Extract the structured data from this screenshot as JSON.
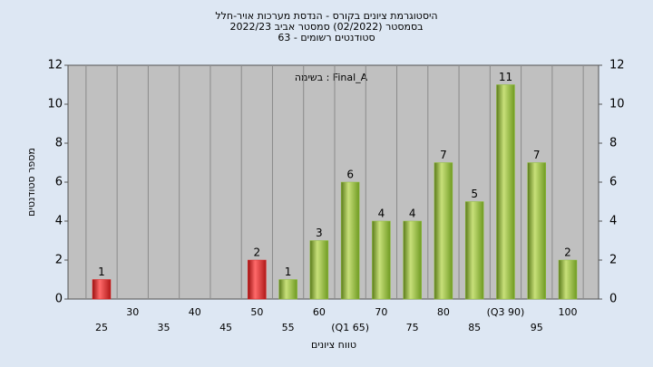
{
  "chart_data": {
    "type": "bar",
    "title_lines": [
      "היסטוגרמת ציונים בקורס - הנדסת מערכות אויר-חלל",
      "בסמסטר  (02/2022)  סמסטר אביב 2022/23",
      "סטודנטים רשומים - 63"
    ],
    "annotation": "בשימה : Final_A",
    "x_label": "טווח ציונים",
    "y_label": "מספר סטודנטים",
    "categories": [
      "25",
      "30",
      "35",
      "40",
      "45",
      "50",
      "55",
      "60",
      "(Q1 65)",
      "70",
      "75",
      "80",
      "85",
      "(Q3 90)",
      "95",
      "100"
    ],
    "values": [
      1,
      0,
      0,
      0,
      0,
      2,
      1,
      3,
      6,
      4,
      4,
      7,
      5,
      11,
      7,
      2
    ],
    "colors": [
      "#e02020",
      "#e02020",
      "#e02020",
      "#e02020",
      "#e02020",
      "#e02020",
      "#8fbf3a",
      "#8fbf3a",
      "#8fbf3a",
      "#8fbf3a",
      "#8fbf3a",
      "#8fbf3a",
      "#8fbf3a",
      "#8fbf3a",
      "#8fbf3a",
      "#8fbf3a"
    ],
    "ylim": [
      0,
      12
    ],
    "yticks": [
      0,
      2,
      4,
      6,
      8,
      10,
      12
    ],
    "y2lim": [
      0,
      12
    ],
    "y2ticks": [
      0,
      2,
      4,
      6,
      8,
      10,
      12
    ]
  }
}
